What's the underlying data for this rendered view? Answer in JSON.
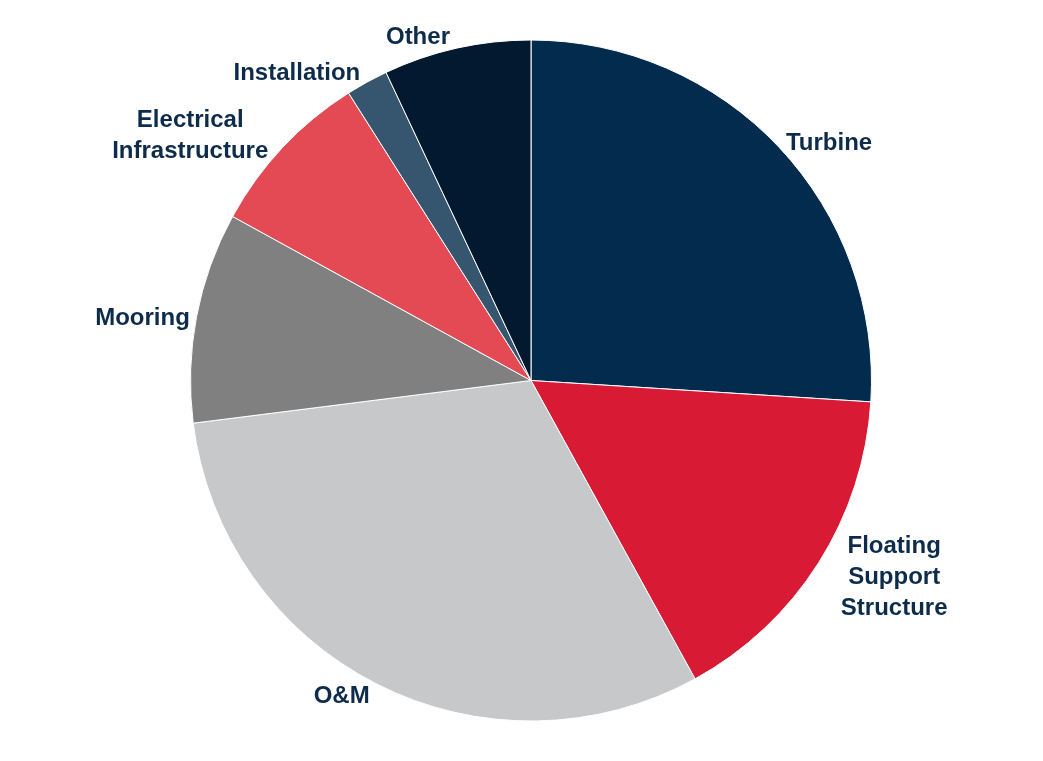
{
  "chart_data": {
    "type": "pie",
    "categories": [
      "Turbine",
      "Floating Support Structure",
      "O&M",
      "Mooring",
      "Electrical Infrastructure",
      "Installation",
      "Other"
    ],
    "values": [
      26,
      16,
      31,
      10,
      8,
      2,
      7
    ],
    "colors": [
      "#022b4e",
      "#d91a35",
      "#c7c8ca",
      "#808080",
      "#e34a54",
      "#36566f",
      "#021930"
    ],
    "legend": false
  }
}
